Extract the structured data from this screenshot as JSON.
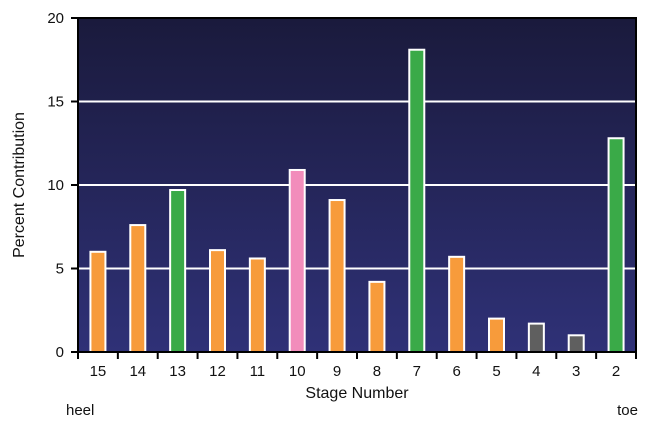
{
  "chart_data": {
    "type": "bar",
    "title": "",
    "xlabel": "Stage Number",
    "ylabel": "Percent Contribution",
    "categories": [
      "15",
      "14",
      "13",
      "12",
      "11",
      "10",
      "9",
      "8",
      "7",
      "6",
      "5",
      "4",
      "3",
      "2"
    ],
    "values": [
      6.0,
      7.6,
      9.7,
      6.1,
      5.6,
      10.9,
      9.1,
      4.2,
      18.1,
      5.7,
      2.0,
      1.7,
      1.0,
      12.8
    ],
    "bar_colors": [
      "#f79b3b",
      "#f79b3b",
      "#3aaa48",
      "#f79b3b",
      "#f79b3b",
      "#f28dbb",
      "#f79b3b",
      "#f79b3b",
      "#3aaa48",
      "#f79b3b",
      "#f79b3b",
      "#5f5f5f",
      "#5f5f5f",
      "#3aaa48"
    ],
    "ylim": [
      0,
      20
    ],
    "yticks": [
      "0",
      "5",
      "10",
      "15",
      "20"
    ],
    "grid": true,
    "background_gradient": [
      "#1a1a3c",
      "#2f3177"
    ],
    "annotations": {
      "left": "heel",
      "right": "toe"
    }
  }
}
